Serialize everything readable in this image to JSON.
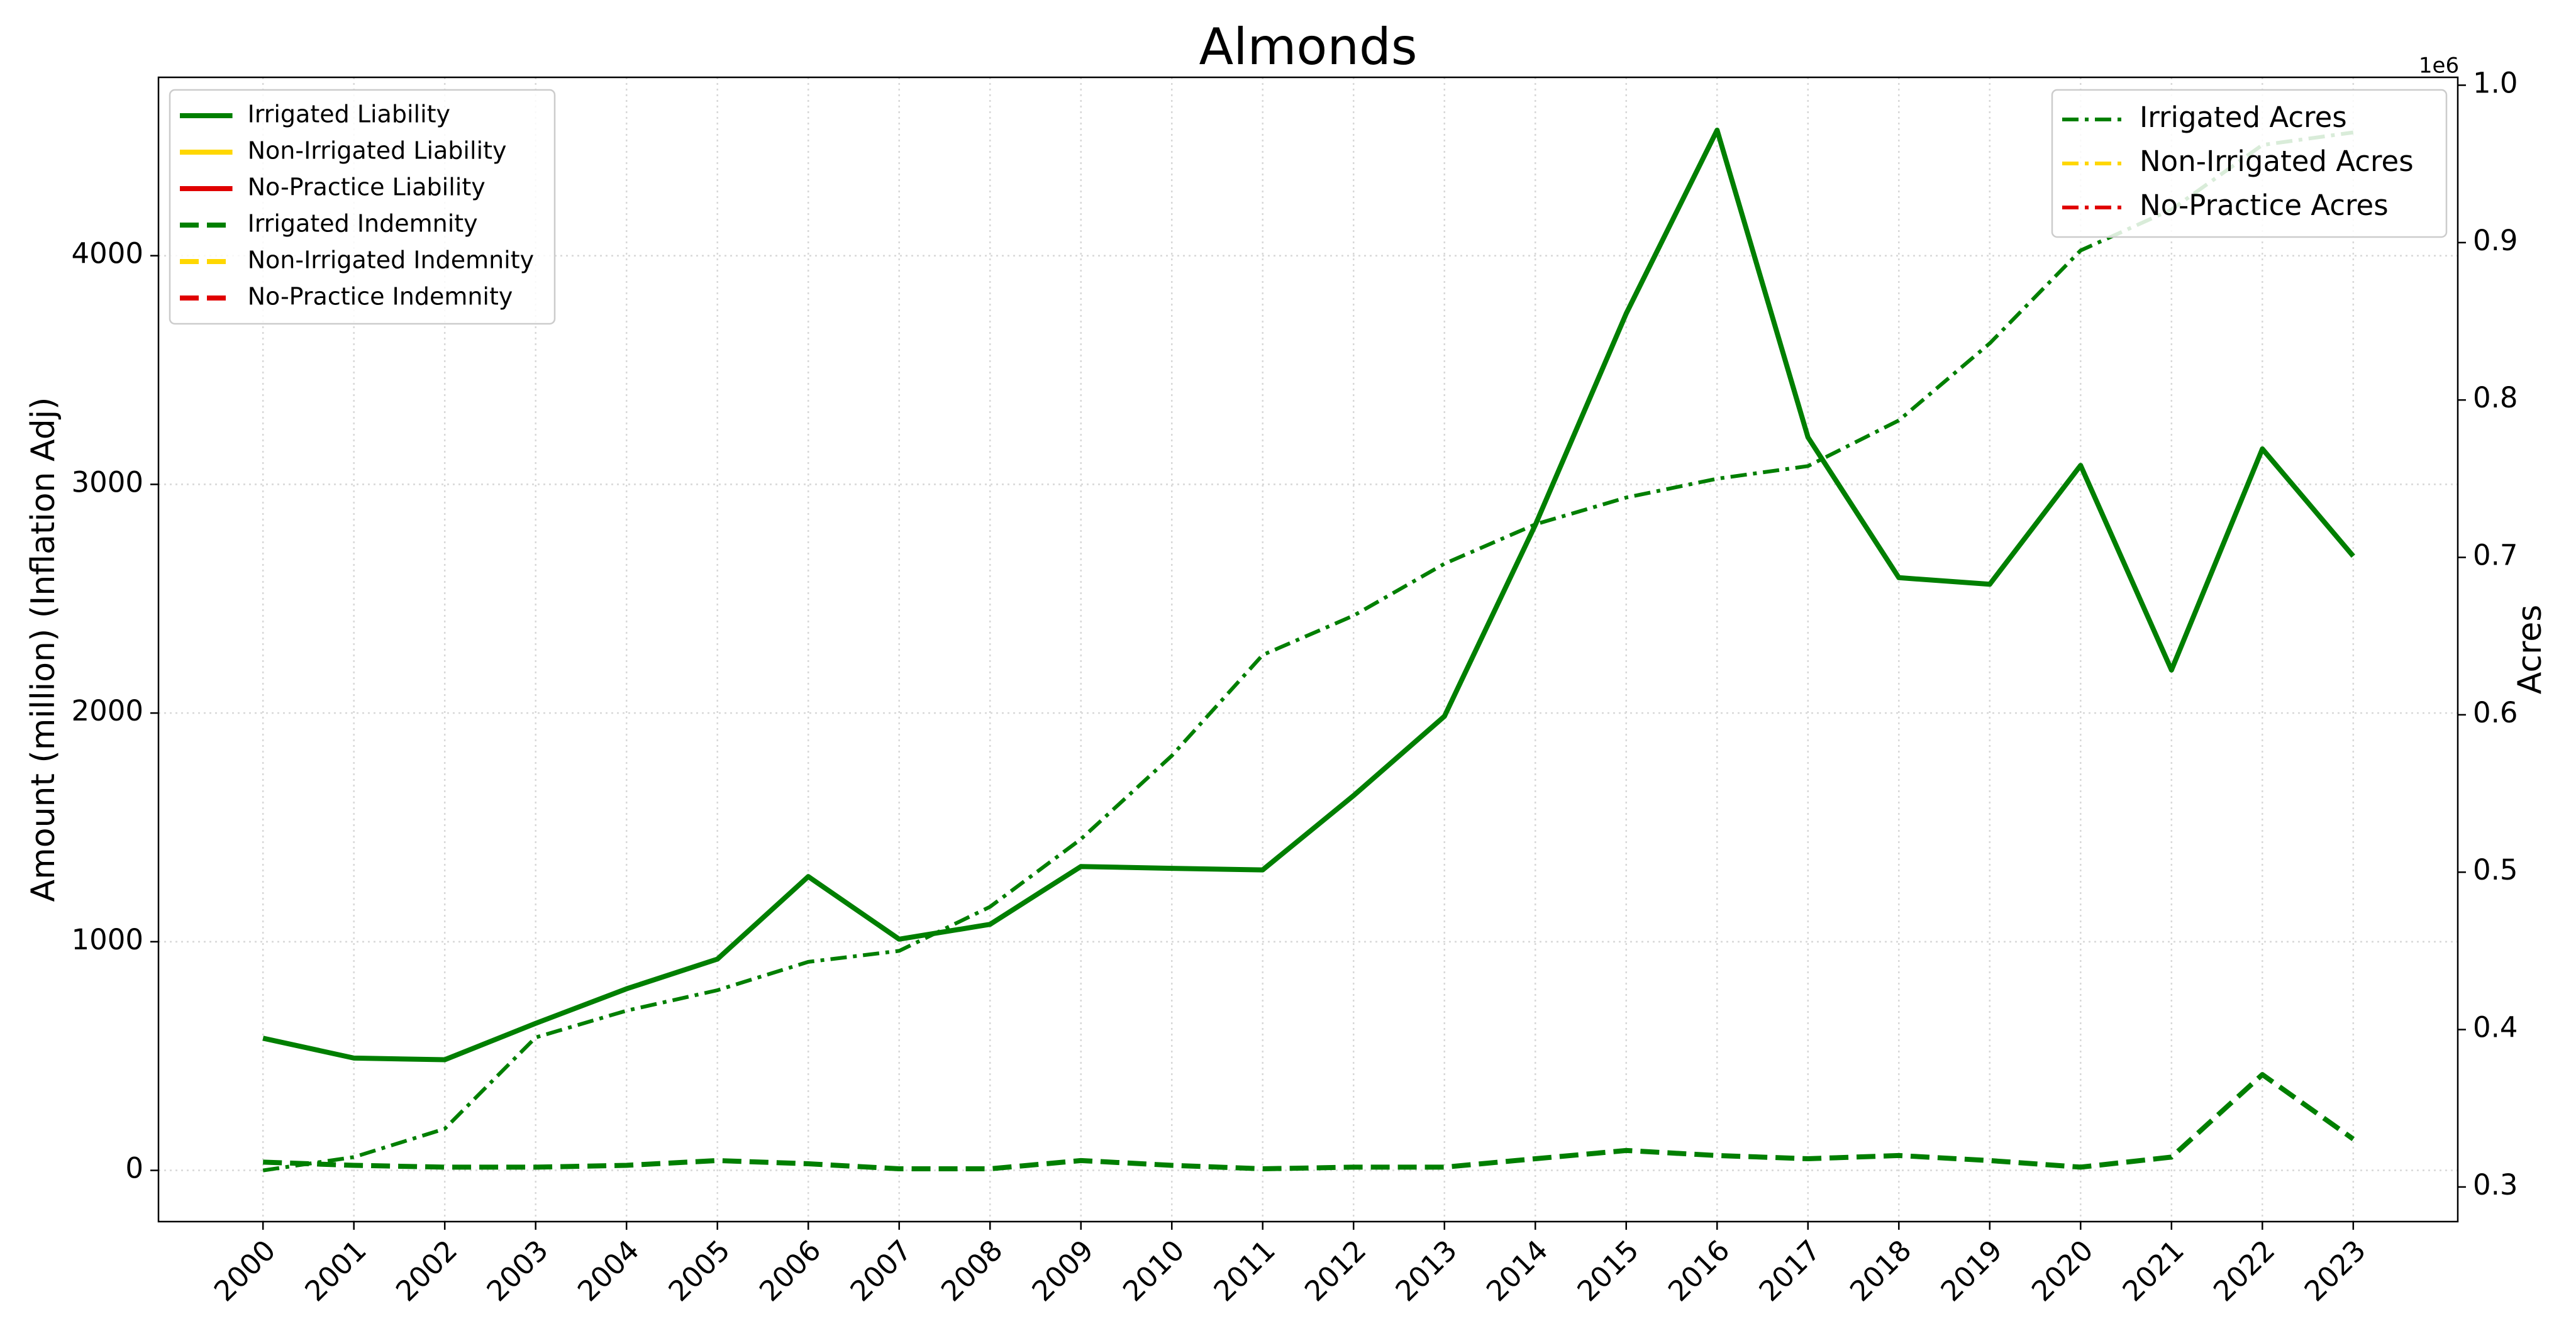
{
  "chart_data": {
    "type": "line",
    "title": "Almonds",
    "ylabel": "Amount (million) (Inflation Adj)",
    "y2label": "Acres",
    "y2offset_label": "1e6",
    "categories": [
      "2000",
      "2001",
      "2002",
      "2003",
      "2004",
      "2005",
      "2006",
      "2007",
      "2008",
      "2009",
      "2010",
      "2011",
      "2012",
      "2013",
      "2014",
      "2015",
      "2016",
      "2017",
      "2018",
      "2019",
      "2020",
      "2021",
      "2022",
      "2023"
    ],
    "ylim": [
      -224,
      4780
    ],
    "yticks": [
      0,
      1000,
      2000,
      3000,
      4000
    ],
    "y2lim": [
      278000,
      1005000
    ],
    "y2ticks": [
      {
        "value": 300000,
        "label": "0.3"
      },
      {
        "value": 400000,
        "label": "0.4"
      },
      {
        "value": 500000,
        "label": "0.5"
      },
      {
        "value": 600000,
        "label": "0.6"
      },
      {
        "value": 700000,
        "label": "0.7"
      },
      {
        "value": 800000,
        "label": "0.8"
      },
      {
        "value": 900000,
        "label": "0.9"
      },
      {
        "value": 1000000,
        "label": "1.0"
      }
    ],
    "grid": true,
    "legend": "upper left",
    "legend2": "upper right",
    "series": [
      {
        "name": "Irrigated Liability",
        "color": "#007f00",
        "style": "solid",
        "axis": "y",
        "values": [
          578,
          491,
          484,
          643,
          794,
          924,
          1285,
          1011,
          1076,
          1329,
          1321,
          1314,
          1639,
          1986,
          2823,
          3747,
          4549,
          3206,
          2592,
          2563,
          3083,
          2188,
          3155,
          2686
        ]
      },
      {
        "name": "Non-Irrigated Liability",
        "color": "#ffd700",
        "style": "solid",
        "axis": "y",
        "values": [
          null,
          null,
          null,
          null,
          null,
          null,
          null,
          null,
          null,
          null,
          null,
          null,
          null,
          null,
          null,
          null,
          null,
          null,
          null,
          null,
          null,
          null,
          null,
          null
        ]
      },
      {
        "name": "No-Practice Liability",
        "color": "#e00000",
        "style": "solid",
        "axis": "y",
        "values": [
          null,
          null,
          null,
          null,
          null,
          null,
          null,
          null,
          null,
          null,
          null,
          null,
          null,
          null,
          null,
          null,
          null,
          null,
          null,
          null,
          null,
          null,
          null,
          null
        ]
      },
      {
        "name": "Irrigated Indemnity",
        "color": "#007f00",
        "style": "dashed",
        "axis": "y",
        "values": [
          36,
          22,
          14,
          14,
          22,
          43,
          29,
          7,
          7,
          43,
          22,
          7,
          14,
          14,
          51,
          87,
          65,
          51,
          65,
          43,
          14,
          58,
          419,
          137
        ]
      },
      {
        "name": "Non-Irrigated Indemnity",
        "color": "#ffd700",
        "style": "dashed",
        "axis": "y",
        "values": [
          null,
          null,
          null,
          null,
          null,
          null,
          null,
          null,
          null,
          null,
          null,
          null,
          null,
          null,
          null,
          null,
          null,
          null,
          null,
          null,
          null,
          null,
          null,
          null
        ]
      },
      {
        "name": "No-Practice Indemnity",
        "color": "#e00000",
        "style": "dashed",
        "axis": "y",
        "values": [
          null,
          null,
          null,
          null,
          null,
          null,
          null,
          null,
          null,
          null,
          null,
          null,
          null,
          null,
          null,
          null,
          null,
          null,
          null,
          null,
          null,
          null,
          null,
          null
        ]
      },
      {
        "name": "Irrigated Acres",
        "color": "#007f00",
        "style": "dashdot",
        "axis": "y2",
        "values": [
          310500,
          319000,
          337000,
          395000,
          412000,
          425000,
          443000,
          450000,
          478000,
          521000,
          574000,
          638000,
          663000,
          696000,
          721000,
          738000,
          750000,
          758000,
          787000,
          836000,
          895000,
          921000,
          962000,
          970000
        ]
      },
      {
        "name": "Non-Irrigated Acres",
        "color": "#ffd700",
        "style": "dashdot",
        "axis": "y2",
        "values": [
          null,
          null,
          null,
          null,
          null,
          null,
          null,
          null,
          null,
          null,
          null,
          null,
          null,
          null,
          null,
          null,
          null,
          null,
          null,
          null,
          null,
          null,
          null,
          null
        ]
      },
      {
        "name": "No-Practice Acres",
        "color": "#e00000",
        "style": "dashdot",
        "axis": "y2",
        "values": [
          null,
          null,
          null,
          null,
          null,
          null,
          null,
          null,
          null,
          null,
          null,
          null,
          null,
          null,
          null,
          null,
          null,
          null,
          null,
          null,
          null,
          null,
          null,
          null
        ]
      }
    ]
  }
}
